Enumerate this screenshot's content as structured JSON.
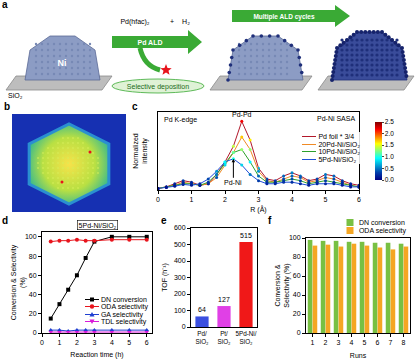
{
  "panel_labels": [
    "a",
    "b",
    "c",
    "d",
    "e",
    "f"
  ],
  "schematic": {
    "reactant": "Pd(hfac)₂",
    "plus": "+",
    "coreactant": "H₂",
    "step1": "Pd ALD",
    "step2": "Multiple ALD cycles",
    "blocked": "Selective deposition",
    "particle": "Ni",
    "support": "SiO₂"
  },
  "chart_data": [
    {
      "type": "line",
      "x": [
        0,
        0.25,
        0.5,
        0.75,
        1,
        1.25,
        1.5,
        1.75,
        2,
        2.25,
        2.5,
        2.75,
        3,
        3.25,
        3.5,
        3.75,
        4,
        4.25,
        4.5,
        4.75,
        5,
        5.25,
        5.5,
        5.75,
        6
      ],
      "series": [
        {
          "name": "Pd foil * 3/4",
          "color": "#b2182b",
          "values": [
            0.05,
            0.1,
            0.2,
            0.3,
            0.25,
            0.15,
            0.2,
            0.5,
            0.9,
            1.4,
            2.2,
            1.6,
            0.7,
            0.35,
            0.3,
            0.45,
            0.55,
            0.45,
            0.3,
            0.35,
            0.5,
            0.45,
            0.3,
            0.2,
            0.15
          ]
        },
        {
          "name": "20Pd-Ni/SiO₂",
          "color": "#f08a24",
          "values": [
            0.05,
            0.1,
            0.15,
            0.25,
            0.2,
            0.15,
            0.2,
            0.4,
            0.8,
            1.2,
            1.7,
            1.3,
            0.6,
            0.3,
            0.25,
            0.35,
            0.45,
            0.4,
            0.25,
            0.3,
            0.4,
            0.35,
            0.25,
            0.15,
            0.1
          ]
        },
        {
          "name": "10Pd-Ni/SiO₂",
          "color": "#2ca02c",
          "values": [
            0.05,
            0.1,
            0.15,
            0.2,
            0.2,
            0.15,
            0.25,
            0.5,
            0.85,
            1.2,
            1.3,
            0.9,
            0.45,
            0.25,
            0.25,
            0.3,
            0.35,
            0.3,
            0.2,
            0.25,
            0.3,
            0.25,
            0.2,
            0.15,
            0.1
          ]
        },
        {
          "name": "5Pd-Ni/SiO₂",
          "color": "#1f4fd8",
          "values": [
            0.05,
            0.08,
            0.12,
            0.18,
            0.15,
            0.2,
            0.35,
            0.6,
            0.9,
            1.0,
            0.8,
            0.5,
            0.3,
            0.2,
            0.2,
            0.25,
            0.25,
            0.2,
            0.15,
            0.2,
            0.2,
            0.2,
            0.15,
            0.1,
            0.1
          ]
        }
      ],
      "xlabel": "R (Å)",
      "ylabel": "Normalized intensity",
      "xlim": [
        0,
        6
      ],
      "xticks": [
        0,
        1,
        2,
        3,
        4,
        5,
        6
      ],
      "ylim": [
        0,
        2.5
      ],
      "tick_labels": "x",
      "legend": "right",
      "annotations": [
        {
          "text": "Pd K-edge"
        },
        {
          "text": "Pd-Pd"
        },
        {
          "text": "Pd-Ni"
        },
        {
          "text": "Pd-Ni SASA"
        }
      ],
      "colorbar": {
        "range": [
          0,
          2.5
        ],
        "ticks": [
          {
            "value": 0,
            "label": "0.0"
          },
          {
            "value": 0.5,
            "label": "0.5"
          },
          {
            "value": 1,
            "label": "1.0"
          },
          {
            "value": 1.5,
            "label": "1.5"
          },
          {
            "value": 2,
            "label": "2.0"
          },
          {
            "value": 2.5,
            "label": "2.5"
          }
        ]
      }
    },
    {
      "type": "line",
      "title": "5Pd-Ni/SiO₂",
      "x": [
        0.5,
        1,
        1.5,
        2,
        2.5,
        3,
        4,
        5,
        6
      ],
      "series": [
        {
          "name": "DN conversion",
          "color": "#000000",
          "marker": "square",
          "values": [
            15,
            30,
            45,
            60,
            78,
            95,
            100,
            100,
            100
          ]
        },
        {
          "name": "ODA selectivity",
          "color": "#e8141c",
          "marker": "circle",
          "values": [
            95,
            96,
            96,
            97,
            96,
            96,
            97,
            97,
            97
          ]
        },
        {
          "name": "GA selectivity",
          "color": "#1f3fd1",
          "marker": "triangle-up",
          "values": [
            3,
            3,
            2,
            3,
            3,
            3,
            3,
            3,
            3
          ]
        },
        {
          "name": "TDL selectivity",
          "color": "#d81bd8",
          "marker": "triangle-down",
          "values": [
            1,
            1,
            1,
            1,
            1,
            1,
            1,
            1,
            1
          ]
        }
      ],
      "xlabel": "Reaction time (h)",
      "ylabel": "Conversion & Selectivity (%)",
      "xlim": [
        0,
        6.3
      ],
      "xticks": [
        0,
        1,
        2,
        3,
        4,
        5,
        6
      ],
      "ylim": [
        0,
        105
      ],
      "yticks": [
        0,
        20,
        40,
        60,
        80,
        100
      ],
      "legend": "right"
    },
    {
      "type": "bar",
      "categories": [
        "Pd/SiO₂",
        "Pt/SiO₂",
        "5Pd-Ni/SiO₂"
      ],
      "values": [
        64,
        127,
        515
      ],
      "colors": [
        "#3a4fe0",
        "#e040e6",
        "#f01818"
      ],
      "ylabel": "TOF (h⁻¹)",
      "ylim": [
        0,
        600
      ],
      "yticks": [
        0,
        100,
        200,
        300,
        400,
        500,
        600
      ],
      "data_labels": true
    },
    {
      "type": "bar",
      "x": [
        1,
        2,
        3,
        4,
        5,
        6,
        7,
        8
      ],
      "series": [
        {
          "name": "DN conversion",
          "color": "#78c043",
          "values": [
            98,
            97,
            97,
            96,
            96,
            95,
            95,
            94
          ]
        },
        {
          "name": "ODA selectivity",
          "color": "#f5a623",
          "values": [
            92,
            93,
            91,
            94,
            92,
            90,
            88,
            91
          ]
        }
      ],
      "xlabel": "Runs",
      "ylabel": "Conversion & Selectivity (%)",
      "xlim": [
        0.5,
        8.5
      ],
      "xticks": [
        1,
        2,
        3,
        4,
        5,
        6,
        7,
        8
      ],
      "ylim": [
        0,
        100
      ],
      "yticks": [
        0,
        20,
        40,
        60,
        80,
        100
      ],
      "legend": "top"
    }
  ]
}
